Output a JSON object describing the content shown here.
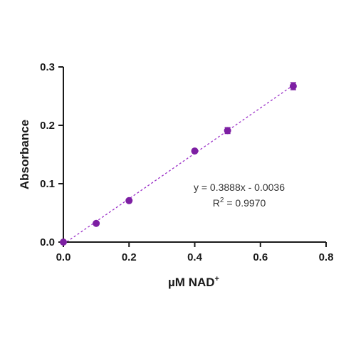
{
  "chart_data": {
    "type": "scatter",
    "xlabel_main": "µM NAD",
    "xlabel_sup": "+",
    "ylabel": "Absorbance",
    "xlim": [
      0,
      0.8
    ],
    "ylim": [
      0,
      0.3
    ],
    "x_ticks": [
      0.0,
      0.2,
      0.4,
      0.6,
      0.8
    ],
    "x_tick_labels": [
      "0.0",
      "0.2",
      "0.4",
      "0.6",
      "0.8"
    ],
    "y_ticks": [
      0.0,
      0.1,
      0.2,
      0.3
    ],
    "y_tick_labels": [
      "0.0",
      "0.1",
      "0.2",
      "0.3"
    ],
    "grid": false,
    "series": [
      {
        "x": [
          0.0,
          0.1,
          0.2,
          0.4,
          0.5,
          0.7
        ],
        "y": [
          0.0,
          0.032,
          0.071,
          0.156,
          0.191,
          0.267
        ],
        "error": [
          0.0,
          0.0,
          0.0,
          0.0,
          0.005,
          0.006
        ],
        "color": "#7d1fa3"
      }
    ],
    "fit_line": {
      "slope": 0.3888,
      "intercept": -0.0036,
      "x_range": [
        0.0,
        0.7
      ],
      "style": "dashed",
      "color": "#9b30c8"
    },
    "annotation": {
      "equation": "y = 0.3888x - 0.0036",
      "r2_main": "R",
      "r2_sup": "2",
      "r2_value": " = 0.9970"
    }
  }
}
